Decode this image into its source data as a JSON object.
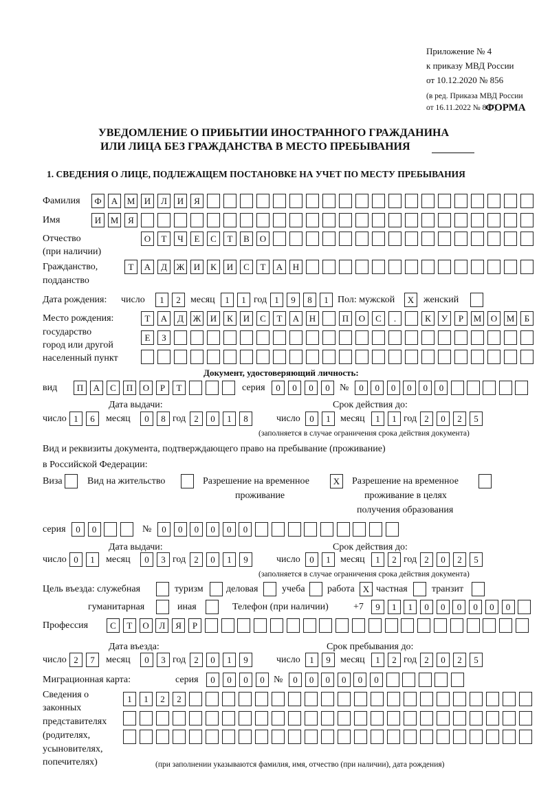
{
  "header": {
    "annex": "Приложение № 4",
    "order": "к приказу МВД России",
    "order_date": "от 10.12.2020 № 856",
    "edition_1": "(в ред. Приказа МВД России",
    "edition_2": "от 16.11.2022 № 867)",
    "form": "ФОРМА"
  },
  "title": {
    "line1": "УВЕДОМЛЕНИЕ О ПРИБЫТИИ ИНОСТРАННОГО ГРАЖДАНИНА",
    "line2": "ИЛИ ЛИЦА БЕЗ ГРАЖДАНСТВА В МЕСТО ПРЕБЫВАНИЯ"
  },
  "section1": {
    "heading": "1. СВЕДЕНИЯ О ЛИЦЕ, ПОДЛЕЖАЩЕМ ПОСТАНОВКЕ НА УЧЕТ ПО МЕСТУ ПРЕБЫВАНИЯ",
    "surname": {
      "label": "Фамилия",
      "value": "ФАМИЛИЯ"
    },
    "name": {
      "label": "Имя",
      "value": "ИМЯ"
    },
    "patronymic": {
      "label": "Отчество",
      "label2": "(при наличии)",
      "value": "ОТЧЕСТВО"
    },
    "citizenship": {
      "label": "Гражданство,",
      "label2": "подданство",
      "value": "ТАДЖИКИСТАН"
    },
    "birth_date": {
      "label": "Дата рождения:",
      "day_label": "число",
      "day": "12",
      "month_label": "месяц",
      "month": "11",
      "year_label": "год",
      "year": "1981"
    },
    "sex": {
      "label_male": "Пол: мужской",
      "male": "X",
      "label_female": "женский",
      "female": ""
    },
    "birth_place": {
      "label1": "Место рождения:",
      "label2": "государство",
      "label3": "город или другой",
      "label4": "населенный пункт",
      "row1": "ТАДЖИКИСТАН ПОС. КУРМОМБ",
      "row2": "ЕЗ",
      "row3": ""
    },
    "identity_doc": {
      "heading": "Документ, удостоверяющий личность:",
      "type_label": "вид",
      "type": "ПАСПОРТ",
      "series_label": "серия",
      "series": "0000",
      "number_label": "№",
      "number": "000000",
      "issue_label": "Дата выдачи:",
      "valid_label": "Срок действия до:",
      "day_label": "число",
      "month_label": "месяц",
      "year_label": "год",
      "issue_day": "16",
      "issue_month": "08",
      "issue_year": "2018",
      "valid_day": "01",
      "valid_month": "11",
      "valid_year": "2025",
      "note": "(заполняется в случае ограничения срока действия документа)"
    },
    "stay_doc": {
      "heading1": "Вид и реквизиты документа, подтверждающего право на пребывание (проживание)",
      "heading2": "в Российской Федерации:",
      "visa_label": "Виза",
      "visa": "",
      "residence_label": "Вид на жительство",
      "residence": "",
      "temp_label1": "Разрешение на временное",
      "temp_label2": "проживание",
      "temp": "X",
      "edu_label1": "Разрешение на временное",
      "edu_label2": "проживание в целях",
      "edu_label3": "получения образования",
      "edu": "",
      "series_label": "серия",
      "series": "00",
      "number_label": "№",
      "number": "000000",
      "issue_label": "Дата выдачи:",
      "valid_label": "Срок действия до:",
      "day_label": "число",
      "month_label": "месяц",
      "year_label": "год",
      "issue_day": "01",
      "issue_month": "03",
      "issue_year": "2019",
      "valid_day": "01",
      "valid_month": "12",
      "valid_year": "2025",
      "note": "(заполняется в случае ограничения срока действия документа)"
    },
    "purpose": {
      "label": "Цель въезда: служебная",
      "official": "",
      "tourism_label": "туризм",
      "tourism": "",
      "business_label": "деловая",
      "business": "",
      "study_label": "учеба",
      "study": "",
      "work_label": "работа",
      "work": "X",
      "private_label": "частная",
      "private": "",
      "transit_label": "транзит",
      "transit": "",
      "humanitarian_label": "гуманитарная",
      "humanitarian": "",
      "other_label": "иная",
      "other": ""
    },
    "phone": {
      "label": "Телефон (при наличии)",
      "prefix": "+7",
      "value": "911000000"
    },
    "profession": {
      "label": "Профессия",
      "value": "СТОЛЯР"
    },
    "entry": {
      "entry_label": "Дата въезда:",
      "stay_label": "Срок пребывания до:",
      "day_label": "число",
      "month_label": "месяц",
      "year_label": "год",
      "entry_day": "27",
      "entry_month": "03",
      "entry_year": "2019",
      "stay_day": "19",
      "stay_month": "12",
      "stay_year": "2025"
    },
    "migration_card": {
      "label": "Миграционная карта:",
      "series_label": "серия",
      "series": "0000",
      "number_label": "№",
      "number": "000000"
    },
    "representatives": {
      "label1": "Сведения о",
      "label2": "законных",
      "label3": "представителях",
      "label4": "(родителях,",
      "label5": "усыновителях,",
      "label6": "попечителях)",
      "row1": "1122",
      "row2": "",
      "row3": "",
      "note": "(при заполнении указываются фамилия, имя, отчество (при наличии), дата рождения)"
    }
  }
}
